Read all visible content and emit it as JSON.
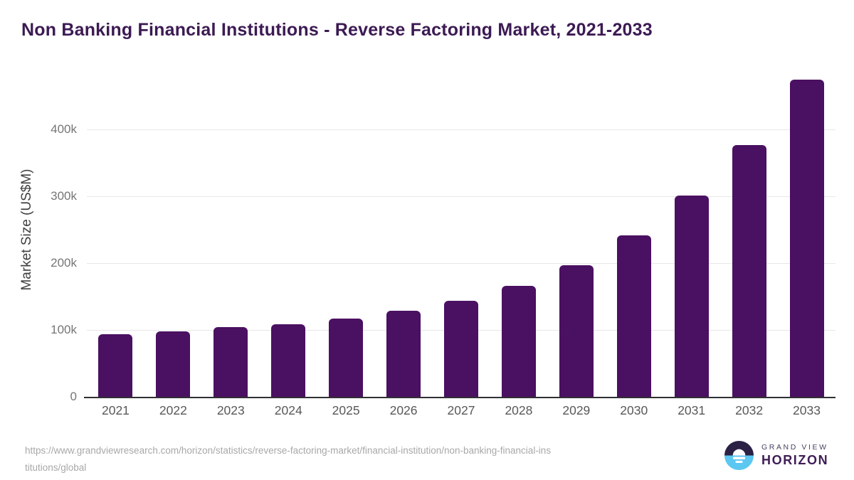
{
  "page": {
    "title": "Non Banking Financial Institutions - Reverse Factoring Market, 2021-2033"
  },
  "chart_data": {
    "type": "bar",
    "title": "Non Banking Financial Institutions - Reverse Factoring Market, 2021-2033",
    "categories": [
      "2021",
      "2022",
      "2023",
      "2024",
      "2025",
      "2026",
      "2027",
      "2028",
      "2029",
      "2030",
      "2031",
      "2032",
      "2033"
    ],
    "values": [
      94000,
      98000,
      104000,
      108000,
      117000,
      129000,
      144000,
      166000,
      197000,
      241000,
      301000,
      377000,
      475000
    ],
    "xlabel": "",
    "ylabel": "Market Size (US$M)",
    "ylim": [
      0,
      500000
    ],
    "yticks": [
      {
        "value": 0,
        "label": "0"
      },
      {
        "value": 100000,
        "label": "100k"
      },
      {
        "value": 200000,
        "label": "200k"
      },
      {
        "value": 300000,
        "label": "300k"
      },
      {
        "value": 400000,
        "label": "400k"
      }
    ],
    "grid": true,
    "legend": "none",
    "bar_color": "#4a1061"
  },
  "footer": {
    "source_url_line1": "https://www.grandviewresearch.com/horizon/statistics/reverse-factoring-market/financial-institution/non-banking-financial-ins",
    "source_url_line2": "titutions/global",
    "logo_line1": "GRAND VIEW",
    "logo_line2": "HORIZON"
  },
  "colors": {
    "bar": "#4a1061",
    "title": "#3c1a53",
    "axis_line": "#303034",
    "gridline": "#e7e7e7",
    "y_tick_label": "#767676",
    "x_tick_label": "#58585a",
    "y_axis_title": "#3f3f3f",
    "footer_url": "#a8a8a8",
    "logo_dark_half": "#2b2144",
    "logo_light_half": "#5cc7f1",
    "logo_title": "#4a4160",
    "logo_subtitle": "#3f1d56"
  }
}
